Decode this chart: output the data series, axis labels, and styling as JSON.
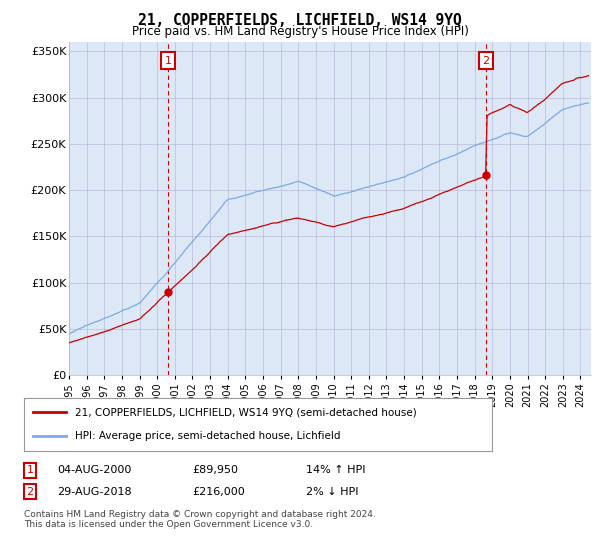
{
  "title": "21, COPPERFIELDS, LICHFIELD, WS14 9YQ",
  "subtitle": "Price paid vs. HM Land Registry's House Price Index (HPI)",
  "legend_line1": "21, COPPERFIELDS, LICHFIELD, WS14 9YQ (semi-detached house)",
  "legend_line2": "HPI: Average price, semi-detached house, Lichfield",
  "footnote1": "Contains HM Land Registry data © Crown copyright and database right 2024.",
  "footnote2": "This data is licensed under the Open Government Licence v3.0.",
  "annotation1_date": "04-AUG-2000",
  "annotation1_price": "£89,950",
  "annotation1_hpi": "14% ↑ HPI",
  "annotation2_date": "29-AUG-2018",
  "annotation2_price": "£216,000",
  "annotation2_hpi": "2% ↓ HPI",
  "ylabel_ticks": [
    "£0",
    "£50K",
    "£100K",
    "£150K",
    "£200K",
    "£250K",
    "£300K",
    "£350K"
  ],
  "ytick_values": [
    0,
    50000,
    100000,
    150000,
    200000,
    250000,
    300000,
    350000
  ],
  "hpi_color": "#7aaae8",
  "price_color": "#cc0000",
  "annotation_color": "#cc0000",
  "chart_bg_color": "#dce8f5",
  "background_color": "#ffffff",
  "grid_color": "#aaaacc"
}
